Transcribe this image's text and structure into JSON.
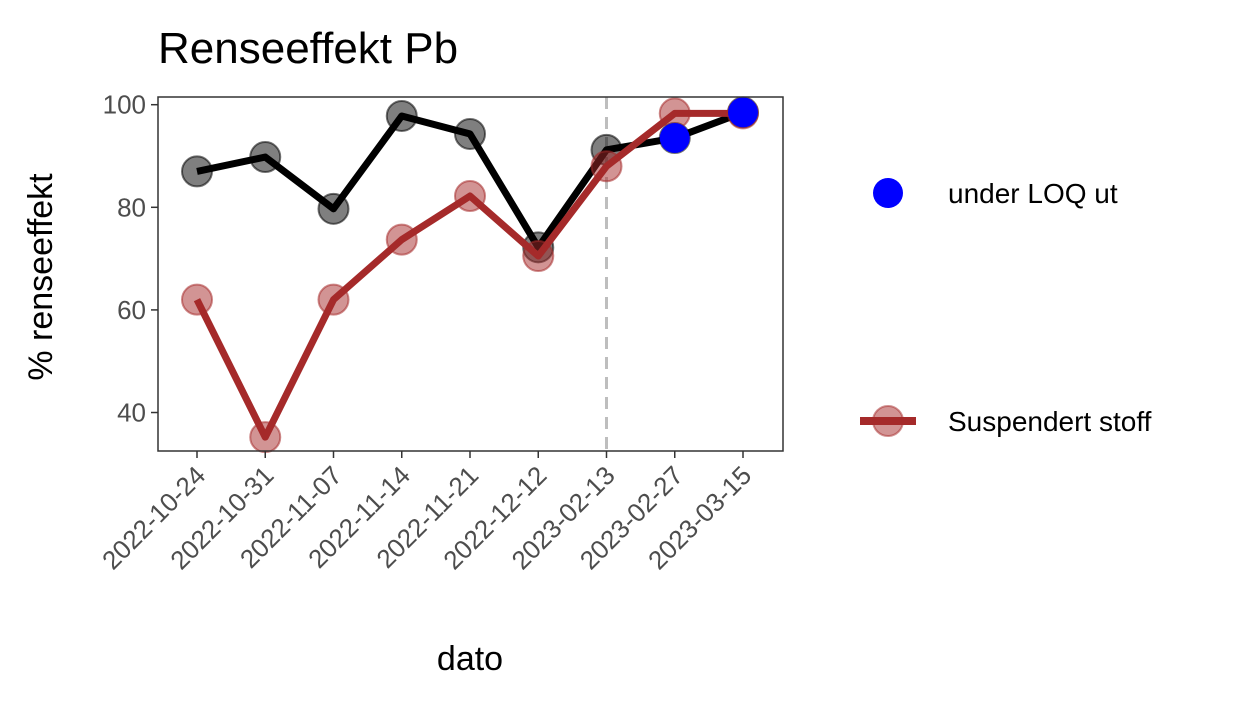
{
  "chart_data": {
    "type": "line",
    "title": "Renseeffekt Pb",
    "xlabel": "dato",
    "ylabel": "% renseeffekt",
    "categories": [
      "2022-10-24",
      "2022-10-31",
      "2022-11-07",
      "2022-11-14",
      "2022-11-21",
      "2022-12-12",
      "2023-02-13",
      "2023-02-27",
      "2023-03-15"
    ],
    "ylim": [
      32.5,
      101.5
    ],
    "yticks": [
      40,
      60,
      80,
      100
    ],
    "grid": false,
    "legend_position": "right",
    "vline_category": "2023-02-13",
    "series": [
      {
        "color": "#000000",
        "values": [
          87,
          89.8,
          79.7,
          97.8,
          94.3,
          72.2,
          91.2,
          93.5,
          98.5
        ]
      },
      {
        "name": "Suspendert stoff",
        "color": "#a52a2a",
        "values": [
          62,
          35.2,
          62,
          73.7,
          82.2,
          70.5,
          88,
          98.3,
          98.3
        ]
      }
    ],
    "highlight": {
      "name": "under LOQ ut",
      "color": "#0000ff",
      "points": [
        {
          "category": "2023-02-27",
          "value": 93.5
        },
        {
          "category": "2023-03-15",
          "value": 98.5
        }
      ]
    }
  }
}
